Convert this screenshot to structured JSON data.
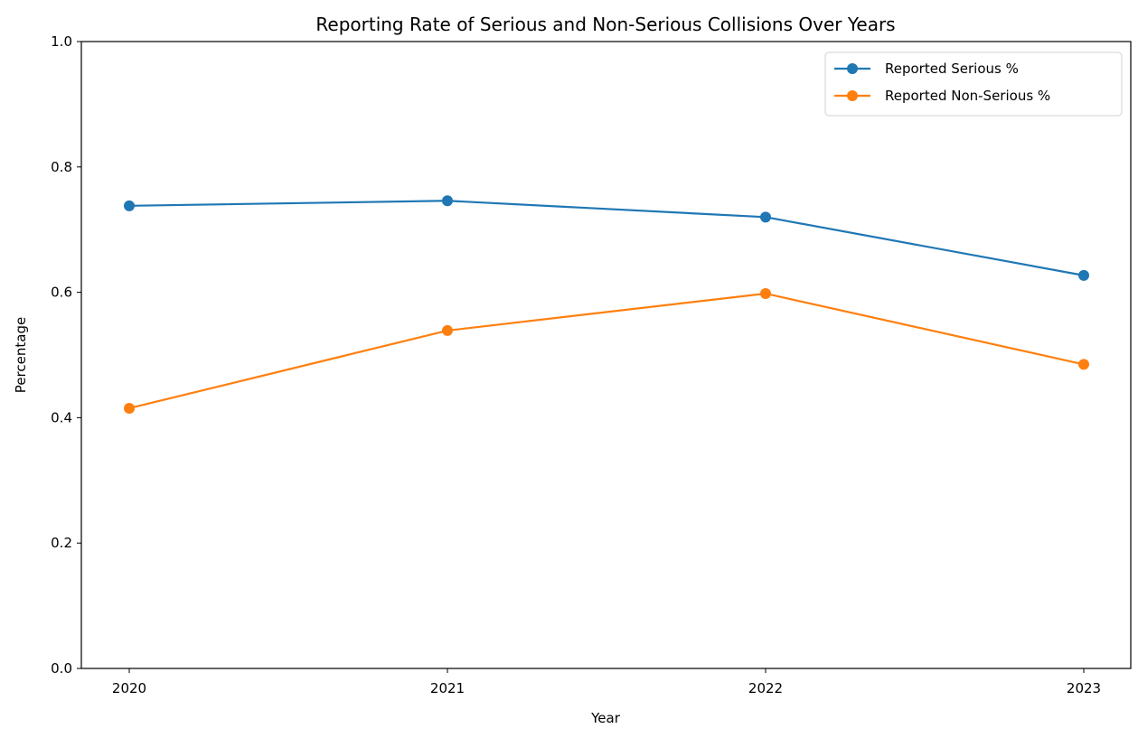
{
  "chart_data": {
    "type": "line",
    "title": "Reporting Rate of Serious and Non-Serious Collisions Over Years",
    "xlabel": "Year",
    "ylabel": "Percentage",
    "categories": [
      "2020",
      "2021",
      "2022",
      "2023"
    ],
    "ylim": [
      0.0,
      1.0
    ],
    "yticks": [
      "0.0",
      "0.2",
      "0.4",
      "0.6",
      "0.8",
      "1.0"
    ],
    "legend_position": "top-right",
    "grid": false,
    "series": [
      {
        "name": "Reported Serious %",
        "color": "#1f77b4",
        "marker": "circle",
        "values": [
          0.738,
          0.746,
          0.72,
          0.627
        ]
      },
      {
        "name": "Reported Non-Serious %",
        "color": "#ff7f0e",
        "marker": "circle",
        "values": [
          0.415,
          0.539,
          0.598,
          0.485
        ]
      }
    ]
  }
}
